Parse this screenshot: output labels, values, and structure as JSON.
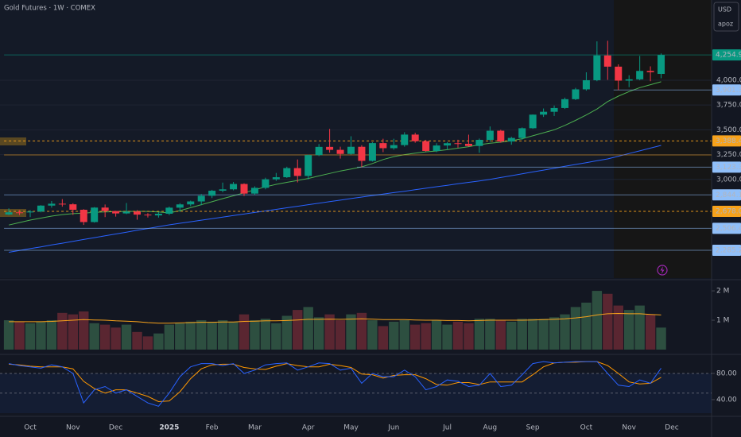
{
  "chart_data": {
    "type": "candlestick",
    "title": "Gold Futures · 1W · COMEX",
    "currency": "USD",
    "badge": "apoz",
    "categories": [
      null,
      null,
      "Oct",
      null,
      null,
      null,
      "Nov",
      null,
      null,
      null,
      "Dec",
      null,
      null,
      null,
      null,
      "2025",
      null,
      null,
      null,
      "Feb",
      null,
      null,
      null,
      "Mar",
      null,
      null,
      null,
      null,
      "Apr",
      null,
      null,
      null,
      "May",
      null,
      null,
      null,
      "Jun",
      null,
      null,
      null,
      null,
      "Jul",
      null,
      null,
      null,
      "Aug",
      null,
      null,
      null,
      "Sep",
      null,
      null,
      null,
      null,
      "Oct",
      null,
      null,
      null,
      "Nov",
      null,
      null,
      null,
      "Dec"
    ],
    "open": [
      2646,
      2668,
      2667,
      2676,
      2736,
      2755,
      2749,
      2694,
      2570,
      2716,
      2681,
      2657,
      2676,
      2645,
      2637,
      2654,
      2715,
      2748,
      2778,
      2835,
      2886,
      2900,
      2954,
      2857,
      2915,
      3001,
      3022,
      3114,
      3035,
      3245,
      3328,
      3298,
      3257,
      3329,
      3187,
      3366,
      3315,
      3346,
      3452,
      3385,
      3287,
      3342,
      3365,
      3359,
      3337,
      3399,
      3491,
      3382,
      3418,
      3516,
      3653,
      3682,
      3720,
      3809,
      3908,
      4000,
      4250,
      4137,
      3996,
      4009,
      4094,
      4064,
      null
    ],
    "high": [
      2708,
      2690,
      2690,
      2740,
      2782,
      2801,
      2760,
      2700,
      2721,
      2747,
      2683,
      2762,
      2690,
      2660,
      2670,
      2726,
      2760,
      2786,
      2853,
      2895,
      2968,
      2974,
      2960,
      2930,
      3017,
      3065,
      3128,
      3201,
      3250,
      3357,
      3509,
      3330,
      3435,
      3345,
      3375,
      3410,
      3410,
      3476,
      3470,
      3398,
      3365,
      3375,
      3400,
      3451,
      3412,
      3534,
      3500,
      3430,
      3524,
      3655,
      3715,
      3745,
      3825,
      3923,
      4080,
      4392,
      4398,
      4160,
      4050,
      4245,
      4140,
      4270,
      null
    ],
    "low": [
      2640,
      2640,
      2620,
      2668,
      2715,
      2725,
      2642,
      2541,
      2564,
      2620,
      2625,
      2650,
      2594,
      2616,
      2615,
      2640,
      2675,
      2730,
      2740,
      2812,
      2870,
      2890,
      2833,
      2845,
      2900,
      2985,
      3015,
      2970,
      3000,
      3235,
      3270,
      3210,
      3250,
      3123,
      3180,
      3275,
      3300,
      3330,
      3370,
      3280,
      3275,
      3300,
      3320,
      3330,
      3268,
      3380,
      3370,
      3350,
      3400,
      3510,
      3630,
      3640,
      3710,
      3800,
      3895,
      3990,
      4004,
      3901.3,
      3930,
      4000,
      3990,
      4020,
      null
    ],
    "close": [
      2668,
      2667,
      2676,
      2736,
      2755,
      2749,
      2694,
      2570,
      2716,
      2681,
      2657,
      2676,
      2645,
      2637,
      2654,
      2715,
      2748,
      2778,
      2835,
      2886,
      2900,
      2954,
      2857,
      2915,
      3001,
      3022,
      3114,
      3035,
      3245,
      3328,
      3298,
      3257,
      3329,
      3187,
      3366,
      3315,
      3346,
      3452,
      3385,
      3287,
      3342,
      3365,
      3359,
      3337,
      3399,
      3491,
      3382,
      3418,
      3516,
      3653,
      3682,
      3720,
      3809,
      3908,
      4000,
      4250,
      4137,
      3996,
      4009,
      4094,
      4081,
      4254.9,
      null
    ],
    "up_color": "#089981",
    "down_color": "#f23645",
    "ylim": [
      2005,
      4809
    ],
    "yticks": [
      {
        "value": 3000,
        "label": "3,000.0"
      },
      {
        "value": 3250,
        "label": "3,250.0"
      },
      {
        "value": 3500,
        "label": "3,500.0"
      },
      {
        "value": 3750,
        "label": "3,750.0"
      },
      {
        "value": 4000,
        "label": "4,000.0"
      }
    ],
    "grid": true,
    "overlays": [
      {
        "color": "#4caf50",
        "values": [
          2540,
          2565,
          2590,
          2610,
          2630,
          2645,
          2655,
          2660,
          2668,
          2672,
          2675,
          2677,
          2678,
          2677,
          2672,
          2662,
          2685,
          2715,
          2745,
          2775,
          2806,
          2835,
          2865,
          2895,
          2925,
          2950,
          2970,
          2990,
          3010,
          3035,
          3060,
          3085,
          3105,
          3127,
          3160,
          3200,
          3230,
          3250,
          3265,
          3278,
          3287,
          3300,
          3315,
          3330,
          3350,
          3365,
          3375,
          3390,
          3410,
          3440,
          3470,
          3500,
          3545,
          3595,
          3650,
          3710,
          3785,
          3840,
          3885,
          3925,
          3955,
          3985,
          null
        ]
      },
      {
        "color": "#2962ff",
        "values": [
          2265,
          2283,
          2302,
          2320,
          2339,
          2357,
          2376,
          2394,
          2413,
          2431,
          2450,
          2468,
          2487,
          2505,
          2524,
          2542,
          2558,
          2573,
          2589,
          2604,
          2620,
          2636,
          2651,
          2667,
          2682,
          2698,
          2714,
          2729,
          2745,
          2760,
          2776,
          2791,
          2807,
          2822,
          2837,
          2852,
          2867,
          2881,
          2896,
          2911,
          2926,
          2941,
          2956,
          2970,
          2985,
          3000,
          3019,
          3038,
          3056,
          3075,
          3094,
          3113,
          3132,
          3151,
          3169,
          3188,
          3207,
          3234,
          3261,
          3288,
          3316,
          3343,
          null
        ]
      }
    ],
    "price_lines": [
      {
        "value": 4254.9,
        "label": "4,254.9",
        "color": "#089981",
        "text_color": "#ffffff",
        "style": "solid",
        "start": 0
      },
      {
        "value": 3901.3,
        "label": "3,901.3",
        "color": "#90bff9",
        "text_color": "#131722",
        "style": "solid",
        "start": 57
      },
      {
        "value": 3388.4,
        "label": "3,388.4",
        "color": "#f7a21b",
        "text_color": "#131722",
        "style": "dashed",
        "start": 0
      },
      {
        "value": 3247,
        "color": "#f7a21b",
        "style": "solid",
        "start": 0
      },
      {
        "value": 3123.3,
        "label": "3,123.3",
        "color": "#90bff9",
        "text_color": "#131722",
        "style": "solid",
        "start": 33
      },
      {
        "value": 2844.1,
        "label": "2,844.1",
        "color": "#90bff9",
        "text_color": "#131722",
        "style": "solid",
        "start": 0
      },
      {
        "value": 2678.0,
        "label": "2,678.0",
        "color": "#f7a21b",
        "text_color": "#131722",
        "style": "dashed",
        "start": 0
      },
      {
        "value": 2506.4,
        "label": "2,506.4",
        "color": "#90bff9",
        "text_color": "#131722",
        "style": "solid",
        "start": 0
      },
      {
        "value": 2285.2,
        "label": "2,285.2",
        "color": "#90bff9",
        "text_color": "#131722",
        "style": "solid",
        "start": 0
      }
    ],
    "volume": {
      "values": [
        1.0,
        0.95,
        0.9,
        0.95,
        1.0,
        1.25,
        1.2,
        1.3,
        0.9,
        0.85,
        0.75,
        0.85,
        0.6,
        0.45,
        0.55,
        0.85,
        0.9,
        0.95,
        1.0,
        0.95,
        1.0,
        0.95,
        1.2,
        1.0,
        1.05,
        0.9,
        1.15,
        1.35,
        1.45,
        1.1,
        1.2,
        1.0,
        1.2,
        1.25,
        1.0,
        0.8,
        0.95,
        1.0,
        0.85,
        0.9,
        1.0,
        0.85,
        0.95,
        0.9,
        1.05,
        1.05,
        1.0,
        0.95,
        1.05,
        1.05,
        1.05,
        1.1,
        1.2,
        1.45,
        1.6,
        2.0,
        1.9,
        1.5,
        1.35,
        1.5,
        1.2,
        0.75,
        null
      ],
      "up_color": "#2d4f40",
      "down_color": "#5a2631",
      "ylim": [
        0,
        2.3
      ],
      "yticks": [
        {
          "value": 1,
          "label": "1 M"
        },
        {
          "value": 2,
          "label": "2 M"
        }
      ],
      "ma": {
        "color": "#f7a21b",
        "values": [
          0.95,
          0.95,
          0.95,
          0.95,
          0.96,
          0.98,
          1.0,
          1.02,
          1.01,
          1.0,
          0.98,
          0.97,
          0.95,
          0.92,
          0.9,
          0.9,
          0.91,
          0.92,
          0.93,
          0.93,
          0.94,
          0.94,
          0.96,
          0.97,
          0.98,
          0.98,
          0.99,
          1.01,
          1.03,
          1.03,
          1.04,
          1.03,
          1.04,
          1.05,
          1.04,
          1.02,
          1.02,
          1.02,
          1.01,
          1.0,
          1.0,
          0.99,
          0.99,
          0.98,
          0.99,
          1.0,
          1.0,
          1.0,
          1.0,
          1.01,
          1.02,
          1.03,
          1.05,
          1.08,
          1.12,
          1.18,
          1.22,
          1.23,
          1.22,
          1.22,
          1.2,
          1.18,
          null
        ]
      }
    },
    "oscillator": {
      "k": {
        "color": "#2962ff",
        "values": [
          95,
          92,
          90,
          88,
          93,
          90,
          80,
          35,
          55,
          60,
          50,
          55,
          45,
          35,
          30,
          50,
          75,
          90,
          95,
          95,
          92,
          95,
          80,
          85,
          93,
          95,
          96,
          85,
          90,
          96,
          95,
          85,
          88,
          65,
          80,
          75,
          75,
          85,
          75,
          55,
          60,
          70,
          68,
          60,
          62,
          80,
          60,
          62,
          78,
          95,
          98,
          96,
          97,
          98,
          98,
          98,
          80,
          62,
          60,
          70,
          65,
          88,
          null
        ]
      },
      "d": {
        "color": "#ff9800",
        "values": [
          94,
          93,
          91,
          90,
          90,
          90,
          87,
          68,
          57,
          50,
          55,
          55,
          50,
          45,
          37,
          38,
          52,
          72,
          87,
          93,
          94,
          94,
          89,
          87,
          86,
          91,
          95,
          92,
          90,
          90,
          94,
          92,
          89,
          79,
          78,
          73,
          77,
          78,
          78,
          72,
          63,
          62,
          66,
          66,
          63,
          67,
          67,
          67,
          67,
          78,
          90,
          96,
          97,
          97,
          98,
          98,
          92,
          80,
          67,
          64,
          65,
          74,
          null
        ]
      },
      "ylim": [
        19.4,
        104.2
      ],
      "yticks": [
        {
          "value": 40,
          "label": "40.00"
        },
        {
          "value": 80,
          "label": "80.00"
        }
      ],
      "levels": [
        80,
        50
      ]
    }
  }
}
